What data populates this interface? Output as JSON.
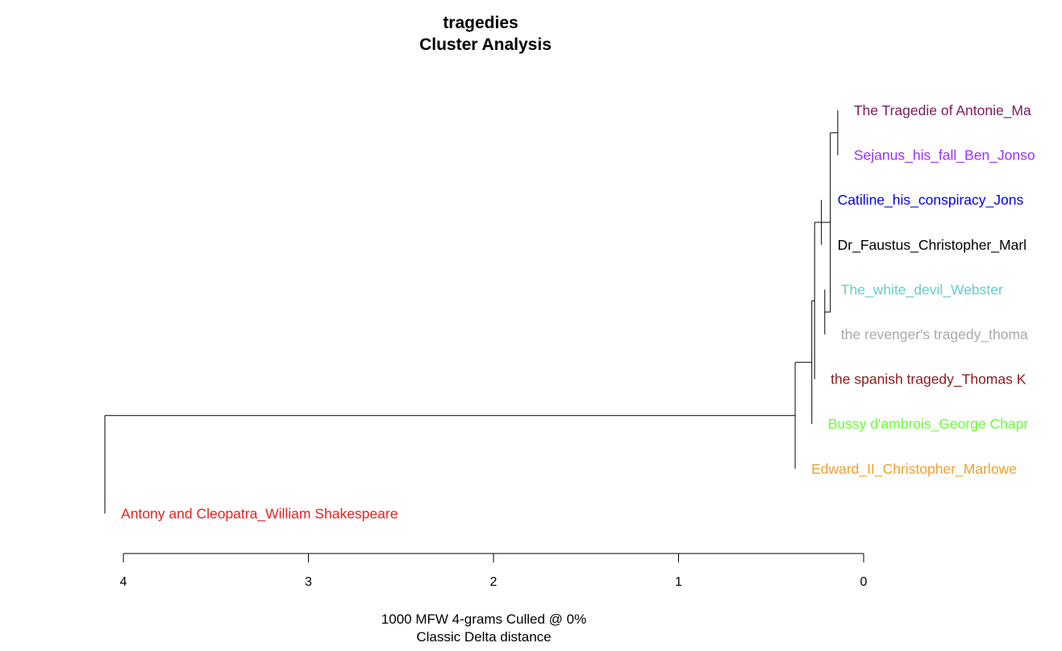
{
  "chart_data": {
    "type": "dendrogram",
    "title": "tragedies",
    "subtitle": "Cluster Analysis",
    "caption_line1": "1000 MFW 4-grams Culled @ 0%",
    "caption_line2": "Classic Delta distance",
    "x_axis": {
      "ticks": [
        "4",
        "3",
        "2",
        "1",
        "0"
      ],
      "range": [
        4,
        0
      ],
      "reversed": true
    },
    "leaves": [
      {
        "label": "The Tragedie of Antonie_Ma",
        "color": "#7b1a5e",
        "height": 0
      },
      {
        "label": "Sejanus_his_fall_Ben_Jonso",
        "color": "#9b30ff",
        "height": 0
      },
      {
        "label": "Catiline_his_conspiracy_Jons",
        "color": "#0000e6",
        "height": 0
      },
      {
        "label": "Dr_Faustus_Christopher_Marl",
        "color": "#000000",
        "height": 0
      },
      {
        "label": "The_white_devil_Webster",
        "color": "#66cdcd",
        "height": 0
      },
      {
        "label": "the revenger's tragedy_thoma",
        "color": "#a9a9a9",
        "height": 0
      },
      {
        "label": "the spanish tragedy_Thomas K",
        "color": "#8b1a1a",
        "height": 0
      },
      {
        "label": "Bussy d'ambrois_George Chapr",
        "color": "#66ff33",
        "height": 0
      },
      {
        "label": "Edward_II_Christopher_Marlowe",
        "color": "#f0a030",
        "height": 0
      },
      {
        "label": "Antony and Cleopatra_William Shakespeare",
        "color": "#e62222",
        "height": 0
      }
    ],
    "merges": [
      {
        "a": "L0",
        "b": "L1",
        "height": 0.14
      },
      {
        "a": "L3",
        "b": "L2",
        "height": 0.228
      },
      {
        "a": "L4",
        "b": "L5",
        "height": 0.21
      },
      {
        "a": "N0",
        "b": "N2",
        "height": 0.18
      },
      {
        "a": "N3",
        "b": "N1",
        "height": 0.23
      },
      {
        "a": "N4",
        "b": "L6",
        "height": 0.265
      },
      {
        "a": "N5",
        "b": "L7",
        "height": 0.28
      },
      {
        "a": "N6",
        "b": "L8",
        "height": 0.37
      },
      {
        "a": "N7",
        "b": "L9",
        "height": 4.1
      }
    ]
  }
}
